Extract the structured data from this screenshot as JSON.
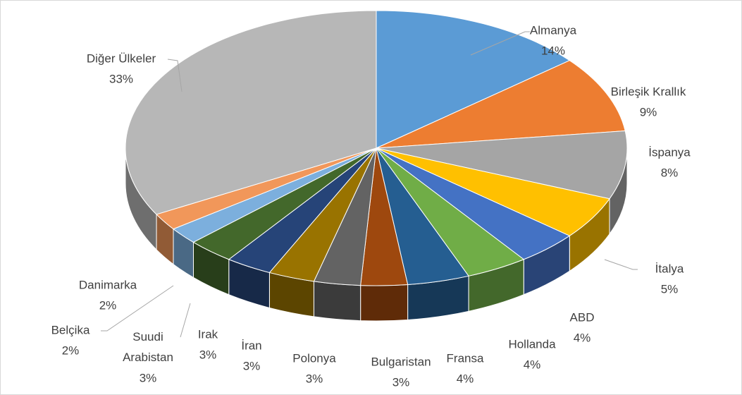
{
  "chart_data": {
    "type": "pie3d",
    "categories": [
      "Almanya",
      "Birleşik Krallık",
      "İspanya",
      "İtalya",
      "ABD",
      "Hollanda",
      "Fransa",
      "Bulgaristan",
      "Polonya",
      "İran",
      "Irak",
      "Suudi Arabistan",
      "Belçika",
      "Danimarka",
      "Diğer Ülkeler"
    ],
    "values": [
      14,
      9,
      8,
      5,
      4,
      4,
      4,
      3,
      3,
      3,
      3,
      3,
      2,
      2,
      33
    ],
    "value_labels": [
      "14%",
      "9%",
      "8%",
      "5%",
      "4%",
      "4%",
      "4%",
      "3%",
      "3%",
      "3%",
      "3%",
      "3%",
      "2%",
      "2%",
      "33%"
    ],
    "colors": [
      "#5b9bd5",
      "#ed7d31",
      "#a5a5a5",
      "#ffc000",
      "#4472c4",
      "#70ad47",
      "#255e91",
      "#9e480e",
      "#636363",
      "#997300",
      "#264478",
      "#43682b",
      "#7cafdd",
      "#f1975a",
      "#b7b7b7"
    ]
  }
}
